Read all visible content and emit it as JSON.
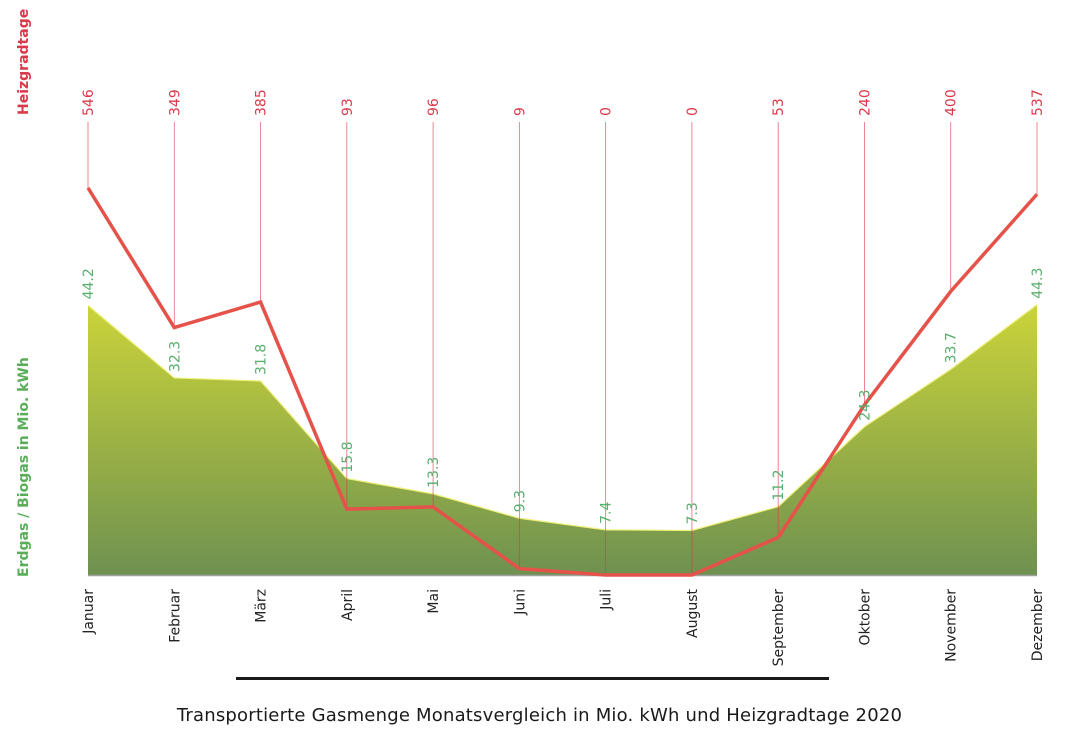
{
  "chart_data": {
    "type": "area",
    "title": "Transportierte Gasmenge Monatsvergleich in Mio. kWh und Heizgradtage 2020",
    "categories": [
      "Januar",
      "Februar",
      "März",
      "April",
      "Mai",
      "Juni",
      "Juli",
      "August",
      "September",
      "Oktober",
      "November",
      "Dezember"
    ],
    "series": [
      {
        "name": "Erdgas / Biogas in Mio. kWh",
        "type": "area",
        "values": [
          44.2,
          32.3,
          31.8,
          15.8,
          13.3,
          9.3,
          7.4,
          7.3,
          11.2,
          24.3,
          33.7,
          44.3
        ],
        "labels": [
          "44.2",
          "32.3",
          "31.8",
          "15.8",
          "13.3",
          "9.3",
          "7.4",
          "7.3",
          "11.2",
          "24.3",
          "33.7",
          "44.3"
        ],
        "color_top": "#cbd43a",
        "color_bottom": "#6e9150"
      },
      {
        "name": "Heizgradtage",
        "type": "line",
        "values": [
          546,
          349,
          385,
          93,
          96,
          9,
          0,
          0,
          53,
          240,
          400,
          537
        ],
        "labels": [
          "546",
          "349",
          "385",
          "93",
          "96",
          "9",
          "0",
          "0",
          "53",
          "240",
          "400",
          "537"
        ],
        "color": "#e5524a"
      }
    ],
    "ylabel_left": "Erdgas / Biogas in Mio. kWh",
    "ylabel_top": "Heizgradtage",
    "xlabel": "",
    "ylim_gas": [
      0,
      44.3
    ],
    "ylim_hdd": [
      0,
      546
    ],
    "grid": false,
    "legend": "none"
  },
  "caption": "Transportierte Gasmenge Monatsvergleich in Mio. kWh und Heizgradtage 2020"
}
